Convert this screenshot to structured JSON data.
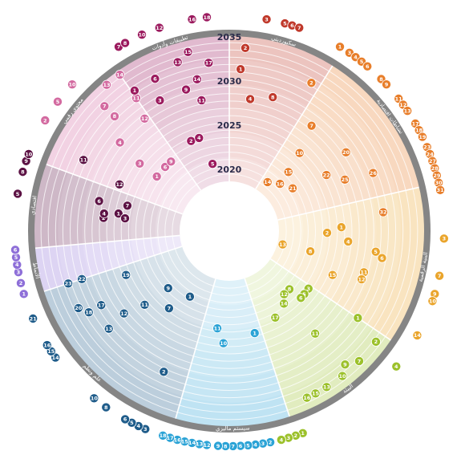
{
  "years": [
    {
      "label": "2035",
      "ring": 0
    },
    {
      "label": "2030",
      "ring": 1
    },
    {
      "label": "2025",
      "ring": 2
    },
    {
      "label": "2020",
      "ring": 3
    }
  ],
  "sectors": [
    {
      "id": "s1",
      "name": "سكيورديتي",
      "start": 0,
      "end": 32,
      "color": "#c0392b"
    },
    {
      "id": "s2",
      "name": "نشاطات اقتصادية",
      "start": 32,
      "end": 77,
      "color": "#e87e2a"
    },
    {
      "id": "s3",
      "name": "البنية الرقمية",
      "start": 77,
      "end": 124,
      "color": "#eaa52c"
    },
    {
      "id": "s4",
      "name": "البيئة",
      "start": 124,
      "end": 162,
      "color": "#9cc12b"
    },
    {
      "id": "s5",
      "name": "سيستم ماليزي",
      "start": 162,
      "end": 196,
      "color": "#2ba3d6"
    },
    {
      "id": "s6",
      "name": "علم ونظم",
      "start": 196,
      "end": 252,
      "color": "#1f5c8a"
    },
    {
      "id": "s7",
      "name": "الأنماط",
      "start": 252,
      "end": 265,
      "color": "#8e6fd8"
    },
    {
      "id": "s8",
      "name": "اقتصادي",
      "start": 265,
      "end": 290,
      "color": "#5c1244"
    },
    {
      "id": "s9",
      "name": "محتوى رقمي",
      "start": 290,
      "end": 325,
      "color": "#d36aa0"
    },
    {
      "id": "s10",
      "name": "تطبيقات وأدوات",
      "start": 325,
      "end": 360,
      "color": "#9b1a5e"
    }
  ],
  "markers": [
    {
      "s": "s1",
      "n": "1",
      "a": 4,
      "r": 4
    },
    {
      "s": "s1",
      "n": "2",
      "a": 5,
      "r": 1
    },
    {
      "s": "s1",
      "n": "4",
      "a": 9,
      "r": 8
    },
    {
      "s": "s1",
      "n": "8",
      "a": 18,
      "r": 7
    },
    {
      "s": "s1",
      "n": "3",
      "a": 10,
      "r": -1
    },
    {
      "s": "s1",
      "n": "5",
      "a": 15,
      "r": -1
    },
    {
      "s": "s1",
      "n": "6",
      "a": 17,
      "r": -1
    },
    {
      "s": "s1",
      "n": "7",
      "a": 19,
      "r": -1
    },
    {
      "s": "s2",
      "n": "1",
      "a": 31,
      "r": -1
    },
    {
      "s": "s2",
      "n": "2",
      "a": 29,
      "r": 3
    },
    {
      "s": "s2",
      "n": "3",
      "a": 34,
      "r": -1
    },
    {
      "s": "s2",
      "n": "4",
      "a": 36,
      "r": -1
    },
    {
      "s": "s2",
      "n": "5",
      "a": 38,
      "r": -1
    },
    {
      "s": "s2",
      "n": "6",
      "a": 40,
      "r": -1
    },
    {
      "s": "s2",
      "n": "7",
      "a": 38,
      "r": 8
    },
    {
      "s": "s2",
      "n": "8",
      "a": 45,
      "r": -1
    },
    {
      "s": "s2",
      "n": "9",
      "a": 47,
      "r": -1
    },
    {
      "s": "s2",
      "n": "10",
      "a": 42,
      "r": 12
    },
    {
      "s": "s2",
      "n": "11",
      "a": 52,
      "r": -1
    },
    {
      "s": "s2",
      "n": "12",
      "a": 54,
      "r": -1
    },
    {
      "s": "s2",
      "n": "13",
      "a": 56,
      "r": -1
    },
    {
      "s": "s2",
      "n": "14",
      "a": 38,
      "r": 18
    },
    {
      "s": "s2",
      "n": "15",
      "a": 45,
      "r": 15
    },
    {
      "s": "s2",
      "n": "16",
      "a": 47,
      "r": 17
    },
    {
      "s": "s2",
      "n": "17",
      "a": 60,
      "r": -1
    },
    {
      "s": "s2",
      "n": "18",
      "a": 62,
      "r": -1
    },
    {
      "s": "s2",
      "n": "19",
      "a": 64,
      "r": -1
    },
    {
      "s": "s2",
      "n": "20",
      "a": 56,
      "r": 7
    },
    {
      "s": "s2",
      "n": "21",
      "a": 56,
      "r": 16
    },
    {
      "s": "s2",
      "n": "22",
      "a": 60,
      "r": 11
    },
    {
      "s": "s2",
      "n": "23",
      "a": 67,
      "r": -1
    },
    {
      "s": "s2",
      "n": "24",
      "a": 69,
      "r": -1
    },
    {
      "s": "s2",
      "n": "25",
      "a": 66,
      "r": 9
    },
    {
      "s": "s2",
      "n": "26",
      "a": 68,
      "r": 5
    },
    {
      "s": "s2",
      "n": "27",
      "a": 71,
      "r": -1
    },
    {
      "s": "s2",
      "n": "28",
      "a": 73,
      "r": -1
    },
    {
      "s": "s2",
      "n": "29",
      "a": 75,
      "r": -1
    },
    {
      "s": "s2",
      "n": "30",
      "a": 77,
      "r": -1
    },
    {
      "s": "s2",
      "n": "31",
      "a": 79,
      "r": -1
    },
    {
      "s": "s2",
      "n": "32",
      "a": 83,
      "r": 5
    },
    {
      "s": "s3",
      "n": "1",
      "a": 88,
      "r": 11
    },
    {
      "s": "s3",
      "n": "2",
      "a": 91,
      "r": 13
    },
    {
      "s": "s3",
      "n": "3",
      "a": 92,
      "r": -1
    },
    {
      "s": "s3",
      "n": "4",
      "a": 95,
      "r": 10
    },
    {
      "s": "s3",
      "n": "5",
      "a": 98,
      "r": 6
    },
    {
      "s": "s3",
      "n": "6",
      "a": 100,
      "r": 5
    },
    {
      "s": "s3",
      "n": "7",
      "a": 102,
      "r": -1
    },
    {
      "s": "s3",
      "n": "8",
      "a": 104,
      "r": 15
    },
    {
      "s": "s3",
      "n": "9",
      "a": 107,
      "r": -1
    },
    {
      "s": "s3",
      "n": "10",
      "a": 109,
      "r": -1
    },
    {
      "s": "s3",
      "n": "11",
      "a": 107,
      "r": 7
    },
    {
      "s": "s3",
      "n": "12",
      "a": 110,
      "r": 7
    },
    {
      "s": "s3",
      "n": "13",
      "a": 104,
      "r": 19
    },
    {
      "s": "s3",
      "n": "14",
      "a": 119,
      "r": -1
    },
    {
      "s": "s3",
      "n": "15",
      "a": 113,
      "r": 11
    },
    {
      "s": "s4",
      "n": "1",
      "a": 124,
      "r": 5
    },
    {
      "s": "s4",
      "n": "2",
      "a": 127,
      "r": 1
    },
    {
      "s": "s4",
      "n": "3",
      "a": 126,
      "r": 13
    },
    {
      "s": "s4",
      "n": "4",
      "a": 129,
      "r": -1
    },
    {
      "s": "s4",
      "n": "5",
      "a": 130,
      "r": 13
    },
    {
      "s": "s4",
      "n": "6",
      "a": 133,
      "r": 13
    },
    {
      "s": "s4",
      "n": "7",
      "a": 135,
      "r": 1
    },
    {
      "s": "s4",
      "n": "8",
      "a": 134,
      "r": 15
    },
    {
      "s": "s4",
      "n": "9",
      "a": 139,
      "r": 2
    },
    {
      "s": "s4",
      "n": "10",
      "a": 142,
      "r": 1
    },
    {
      "s": "s4",
      "n": "11",
      "a": 140,
      "r": 8
    },
    {
      "s": "s4",
      "n": "12",
      "a": 139,
      "r": 15
    },
    {
      "s": "s4",
      "n": "13",
      "a": 148,
      "r": 1
    },
    {
      "s": "s4",
      "n": "14",
      "a": 143,
      "r": 14
    },
    {
      "s": "s4",
      "n": "15",
      "a": 152,
      "r": 1
    },
    {
      "s": "s4",
      "n": "16",
      "a": 155,
      "r": 1
    },
    {
      "s": "s4",
      "n": "17",
      "a": 152,
      "r": 13
    },
    {
      "s": "s4",
      "n": "1",
      "a": 160,
      "r": -1
    },
    {
      "s": "s4",
      "n": "2",
      "a": 162,
      "r": -1
    },
    {
      "s": "s4",
      "n": "3",
      "a": 164,
      "r": -1
    },
    {
      "s": "s4",
      "n": "4",
      "a": 166,
      "r": -1
    },
    {
      "s": "s5",
      "n": "1",
      "a": 166,
      "r": 12
    },
    {
      "s": "s5",
      "n": "2",
      "a": 169,
      "r": -1
    },
    {
      "s": "s5",
      "n": "3",
      "a": 171,
      "r": -1
    },
    {
      "s": "s5",
      "n": "4",
      "a": 173,
      "r": -1
    },
    {
      "s": "s5",
      "n": "5",
      "a": 175,
      "r": -1
    },
    {
      "s": "s5",
      "n": "6",
      "a": 177,
      "r": -1
    },
    {
      "s": "s5",
      "n": "7",
      "a": 179,
      "r": -1
    },
    {
      "s": "s5",
      "n": "8",
      "a": 181,
      "r": -1
    },
    {
      "s": "s5",
      "n": "9",
      "a": 183,
      "r": -1
    },
    {
      "s": "s5",
      "n": "10",
      "a": 183,
      "r": 11
    },
    {
      "s": "s5",
      "n": "11",
      "a": 187,
      "r": 13
    },
    {
      "s": "s5",
      "n": "12",
      "a": 186,
      "r": -1
    },
    {
      "s": "s5",
      "n": "13",
      "a": 188,
      "r": -1
    },
    {
      "s": "s5",
      "n": "14",
      "a": 190,
      "r": -1
    },
    {
      "s": "s5",
      "n": "15",
      "a": 192,
      "r": -1
    },
    {
      "s": "s5",
      "n": "16",
      "a": 194,
      "r": -1
    },
    {
      "s": "s5",
      "n": "17",
      "a": 196,
      "r": -1
    },
    {
      "s": "s5",
      "n": "18",
      "a": 198,
      "r": -1
    },
    {
      "s": "s6",
      "n": "1",
      "a": 211,
      "r": 16
    },
    {
      "s": "s6",
      "n": "2",
      "a": 205,
      "r": 5
    },
    {
      "s": "s6",
      "n": "3",
      "a": 203,
      "r": -1
    },
    {
      "s": "s6",
      "n": "4",
      "a": 205,
      "r": -1
    },
    {
      "s": "s6",
      "n": "5",
      "a": 207,
      "r": -1
    },
    {
      "s": "s6",
      "n": "6",
      "a": 209,
      "r": -1
    },
    {
      "s": "s6",
      "n": "7",
      "a": 218,
      "r": 13
    },
    {
      "s": "s6",
      "n": "8",
      "a": 215,
      "r": -1
    },
    {
      "s": "s6",
      "n": "9",
      "a": 227,
      "r": 15
    },
    {
      "s": "s6",
      "n": "10",
      "a": 219,
      "r": -1
    },
    {
      "s": "s6",
      "n": "11",
      "a": 229,
      "r": 11
    },
    {
      "s": "s6",
      "n": "12",
      "a": 232,
      "r": 8
    },
    {
      "s": "s6",
      "n": "13",
      "a": 231,
      "r": 5
    },
    {
      "s": "s6",
      "n": "14",
      "a": 234,
      "r": -1
    },
    {
      "s": "s6",
      "n": "15",
      "a": 236,
      "r": -1
    },
    {
      "s": "s6",
      "n": "16",
      "a": 238,
      "r": -1
    },
    {
      "s": "s6",
      "n": "17",
      "a": 240,
      "r": 6
    },
    {
      "s": "s6",
      "n": "18",
      "a": 240,
      "r": 4
    },
    {
      "s": "s6",
      "n": "19",
      "a": 247,
      "r": 11
    },
    {
      "s": "s6",
      "n": "20",
      "a": 243,
      "r": 3
    },
    {
      "s": "s6",
      "n": "21",
      "a": 246,
      "r": -1
    },
    {
      "s": "s6",
      "n": "22",
      "a": 252,
      "r": 5
    },
    {
      "s": "s6",
      "n": "23",
      "a": 252,
      "r": 3
    },
    {
      "s": "s7",
      "n": "1",
      "a": 253,
      "r": -1
    },
    {
      "s": "s7",
      "n": "2",
      "a": 256,
      "r": -1
    },
    {
      "s": "s7",
      "n": "3",
      "a": 259,
      "r": -1
    },
    {
      "s": "s7",
      "n": "4",
      "a": 261,
      "r": -1
    },
    {
      "s": "s7",
      "n": "5",
      "a": 263,
      "r": -1
    },
    {
      "s": "s7",
      "n": "6",
      "a": 265,
      "r": -1
    },
    {
      "s": "s8",
      "n": "1",
      "a": 279,
      "r": 11
    },
    {
      "s": "s8",
      "n": "2",
      "a": 276,
      "r": 9
    },
    {
      "s": "s8",
      "n": "3",
      "a": 277,
      "r": 12
    },
    {
      "s": "s8",
      "n": "4",
      "a": 278,
      "r": 9
    },
    {
      "s": "s8",
      "n": "5",
      "a": 280,
      "r": -1
    },
    {
      "s": "s8",
      "n": "6",
      "a": 283,
      "r": 8
    },
    {
      "s": "s8",
      "n": "7",
      "a": 284,
      "r": 12
    },
    {
      "s": "s8",
      "n": "8",
      "a": 286,
      "r": -1
    },
    {
      "s": "s8",
      "n": "9",
      "a": 289,
      "r": -1
    },
    {
      "s": "s8",
      "n": "10",
      "a": 291,
      "r": -1
    },
    {
      "s": "s8",
      "n": "11",
      "a": 296,
      "r": 4
    },
    {
      "s": "s8",
      "n": "12",
      "a": 293,
      "r": 10
    },
    {
      "s": "s9",
      "n": "1",
      "a": 307,
      "r": 14
    },
    {
      "s": "s9",
      "n": "2",
      "a": 301,
      "r": -1
    },
    {
      "s": "s9",
      "n": "3",
      "a": 307,
      "r": 11
    },
    {
      "s": "s9",
      "n": "4",
      "a": 309,
      "r": 7
    },
    {
      "s": "s9",
      "n": "5",
      "a": 307,
      "r": -1
    },
    {
      "s": "s9",
      "n": "6",
      "a": 315,
      "r": 14
    },
    {
      "s": "s9",
      "n": "7",
      "a": 315,
      "r": 2
    },
    {
      "s": "s9",
      "n": "8",
      "a": 315,
      "r": 4
    },
    {
      "s": "s9",
      "n": "9",
      "a": 320,
      "r": 14
    },
    {
      "s": "s9",
      "n": "10",
      "a": 313,
      "r": -1
    },
    {
      "s": "s9",
      "n": "11",
      "a": 325,
      "r": 4
    },
    {
      "s": "s9",
      "n": "12",
      "a": 323,
      "r": 7
    },
    {
      "s": "s9",
      "n": "13",
      "a": 320,
      "r": 0
    },
    {
      "s": "s9",
      "n": "14",
      "a": 325,
      "r": 0
    },
    {
      "s": "s10",
      "n": "1",
      "a": 326,
      "r": 3
    },
    {
      "s": "s10",
      "n": "2",
      "a": 337,
      "r": 13
    },
    {
      "s": "s10",
      "n": "3",
      "a": 332,
      "r": 6
    },
    {
      "s": "s10",
      "n": "4",
      "a": 342,
      "r": 13
    },
    {
      "s": "s10",
      "n": "5",
      "a": 346,
      "r": 17
    },
    {
      "s": "s10",
      "n": "6",
      "a": 334,
      "r": 3
    },
    {
      "s": "s10",
      "n": "7",
      "a": 329,
      "r": -1
    },
    {
      "s": "s10",
      "n": "8",
      "a": 331,
      "r": -1
    },
    {
      "s": "s10",
      "n": "9",
      "a": 343,
      "r": 6
    },
    {
      "s": "s10",
      "n": "10",
      "a": 336,
      "r": -1
    },
    {
      "s": "s10",
      "n": "11",
      "a": 348,
      "r": 8
    },
    {
      "s": "s10",
      "n": "12",
      "a": 341,
      "r": -1
    },
    {
      "s": "s10",
      "n": "13",
      "a": 343,
      "r": 2
    },
    {
      "s": "s10",
      "n": "14",
      "a": 348,
      "r": 5
    },
    {
      "s": "s10",
      "n": "15",
      "a": 347,
      "r": 1
    },
    {
      "s": "s10",
      "n": "16",
      "a": 350,
      "r": -1
    },
    {
      "s": "s10",
      "n": "17",
      "a": 353,
      "r": 3
    },
    {
      "s": "s10",
      "n": "18",
      "a": 354,
      "r": -1
    }
  ]
}
